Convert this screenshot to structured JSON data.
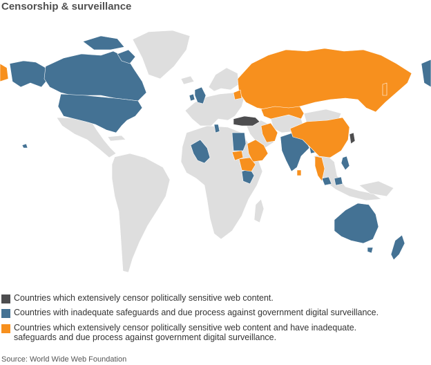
{
  "title": "Censorship & surveillance",
  "colors": {
    "censor": "#4d4d4f",
    "surveillance": "#447294",
    "both": "#f7901e",
    "other": "#dedede",
    "border": "#ffffff"
  },
  "legend": [
    {
      "key": "censor",
      "label": "Countries which extensively censor politically sensitive web content."
    },
    {
      "key": "surveillance",
      "label": "Countries with inadequate safeguards and due process against government digital surveillance."
    },
    {
      "key": "both",
      "label": "Countries which extensively censor politically sensitive web content and have inadequate. safeguards and due process against government digital surveillance."
    }
  ],
  "source": "Source: World Wide Web Foundation"
}
